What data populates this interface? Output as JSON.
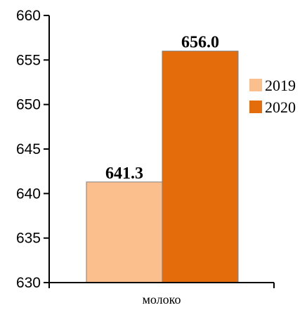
{
  "chart_data": {
    "type": "bar",
    "categories": [
      "молоко"
    ],
    "series": [
      {
        "name": "2019",
        "values": [
          641.3
        ],
        "color": "#FBBF8E"
      },
      {
        "name": "2020",
        "values": [
          656.0
        ],
        "color": "#E46C0A"
      }
    ],
    "data_labels": [
      "641.3",
      "656.0"
    ],
    "ylim": [
      630,
      660
    ],
    "yticks": [
      630,
      635,
      640,
      645,
      650,
      655,
      660
    ],
    "grid": false,
    "legend": "right"
  }
}
